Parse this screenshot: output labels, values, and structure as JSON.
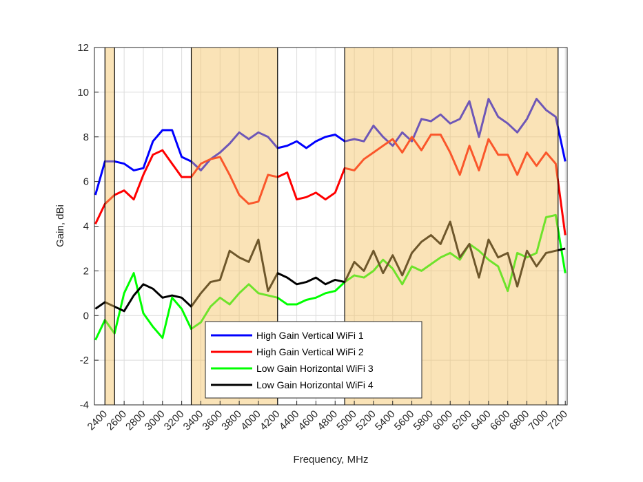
{
  "chart_data": {
    "type": "line",
    "xlabel": "Frequency, MHz",
    "ylabel": "Gain, dBi",
    "x": [
      2300,
      2400,
      2500,
      2600,
      2700,
      2800,
      2900,
      3000,
      3100,
      3200,
      3300,
      3400,
      3500,
      3600,
      3700,
      3800,
      3900,
      4000,
      4100,
      4200,
      4300,
      4400,
      4500,
      4600,
      4700,
      4800,
      4900,
      5000,
      5100,
      5200,
      5300,
      5400,
      5500,
      5600,
      5700,
      5800,
      5900,
      6000,
      6100,
      6200,
      6300,
      6400,
      6500,
      6600,
      6700,
      6800,
      6900,
      7000,
      7100,
      7200
    ],
    "series": [
      {
        "name": "High Gain Vertical WiFi 1",
        "color": "#0000ff",
        "values": [
          5.4,
          6.9,
          6.9,
          6.8,
          6.5,
          6.6,
          7.8,
          8.3,
          8.3,
          7.1,
          6.9,
          6.5,
          7.0,
          7.3,
          7.7,
          8.2,
          7.9,
          8.2,
          8.0,
          7.5,
          7.6,
          7.8,
          7.5,
          7.8,
          8.0,
          8.1,
          7.8,
          7.9,
          7.8,
          8.5,
          8.0,
          7.6,
          8.2,
          7.8,
          8.8,
          8.7,
          9.0,
          8.6,
          8.8,
          9.6,
          8.0,
          9.7,
          8.9,
          8.6,
          8.2,
          8.8,
          9.7,
          9.2,
          8.9,
          6.9
        ]
      },
      {
        "name": "High Gain Vertical WiFi 2",
        "color": "#ff0000",
        "values": [
          4.1,
          5.0,
          5.4,
          5.6,
          5.2,
          6.3,
          7.2,
          7.4,
          6.8,
          6.2,
          6.2,
          6.8,
          7.0,
          7.1,
          6.3,
          5.4,
          5.0,
          5.1,
          6.3,
          6.2,
          6.4,
          5.2,
          5.3,
          5.5,
          5.2,
          5.5,
          6.6,
          6.5,
          7.0,
          7.3,
          7.6,
          7.9,
          7.3,
          8.0,
          7.4,
          8.1,
          8.1,
          7.3,
          6.3,
          7.6,
          6.5,
          7.9,
          7.2,
          7.2,
          6.3,
          7.3,
          6.7,
          7.3,
          6.8,
          3.6
        ]
      },
      {
        "name": "Low Gain Horizontal WiFi 3",
        "color": "#00ff00",
        "values": [
          -1.1,
          -0.2,
          -0.8,
          1.0,
          1.9,
          0.1,
          -0.5,
          -1.0,
          0.8,
          0.3,
          -0.6,
          -0.3,
          0.4,
          0.8,
          0.5,
          1.0,
          1.4,
          1.0,
          0.9,
          0.8,
          0.5,
          0.5,
          0.7,
          0.8,
          1.0,
          1.1,
          1.5,
          1.8,
          1.7,
          2.0,
          2.5,
          2.1,
          1.4,
          2.2,
          2.0,
          2.3,
          2.6,
          2.8,
          2.5,
          3.2,
          2.9,
          2.5,
          2.2,
          1.1,
          2.8,
          2.6,
          2.8,
          4.4,
          4.5,
          1.9
        ]
      },
      {
        "name": "Low Gain Horizontal WiFi 4",
        "color": "#000000",
        "values": [
          0.3,
          0.6,
          0.4,
          0.2,
          0.9,
          1.4,
          1.2,
          0.8,
          0.9,
          0.8,
          0.4,
          1.0,
          1.5,
          1.6,
          2.9,
          2.6,
          2.4,
          3.4,
          1.1,
          1.9,
          1.7,
          1.4,
          1.5,
          1.7,
          1.4,
          1.6,
          1.5,
          2.4,
          2.0,
          2.9,
          1.9,
          2.7,
          1.8,
          2.8,
          3.3,
          3.6,
          3.2,
          4.2,
          2.6,
          3.2,
          1.7,
          3.4,
          2.6,
          2.8,
          1.3,
          2.9,
          2.2,
          2.8,
          2.9,
          3.0
        ]
      }
    ],
    "bands": [
      [
        2400,
        2500
      ],
      [
        3300,
        4200
      ],
      [
        4900,
        7125
      ]
    ],
    "band_color": "#f5c060",
    "xlim": [
      2290,
      7220
    ],
    "ylim": [
      -4,
      12
    ],
    "xticks": [
      2400,
      2600,
      2800,
      3000,
      3200,
      3400,
      3600,
      3800,
      4000,
      4200,
      4400,
      4600,
      4800,
      5000,
      5200,
      5400,
      5600,
      5800,
      6000,
      6200,
      6400,
      6600,
      6800,
      7000,
      7200
    ],
    "yticks": [
      -4,
      -2,
      0,
      2,
      4,
      6,
      8,
      10,
      12
    ],
    "grid": true,
    "legend": "lower-left"
  }
}
